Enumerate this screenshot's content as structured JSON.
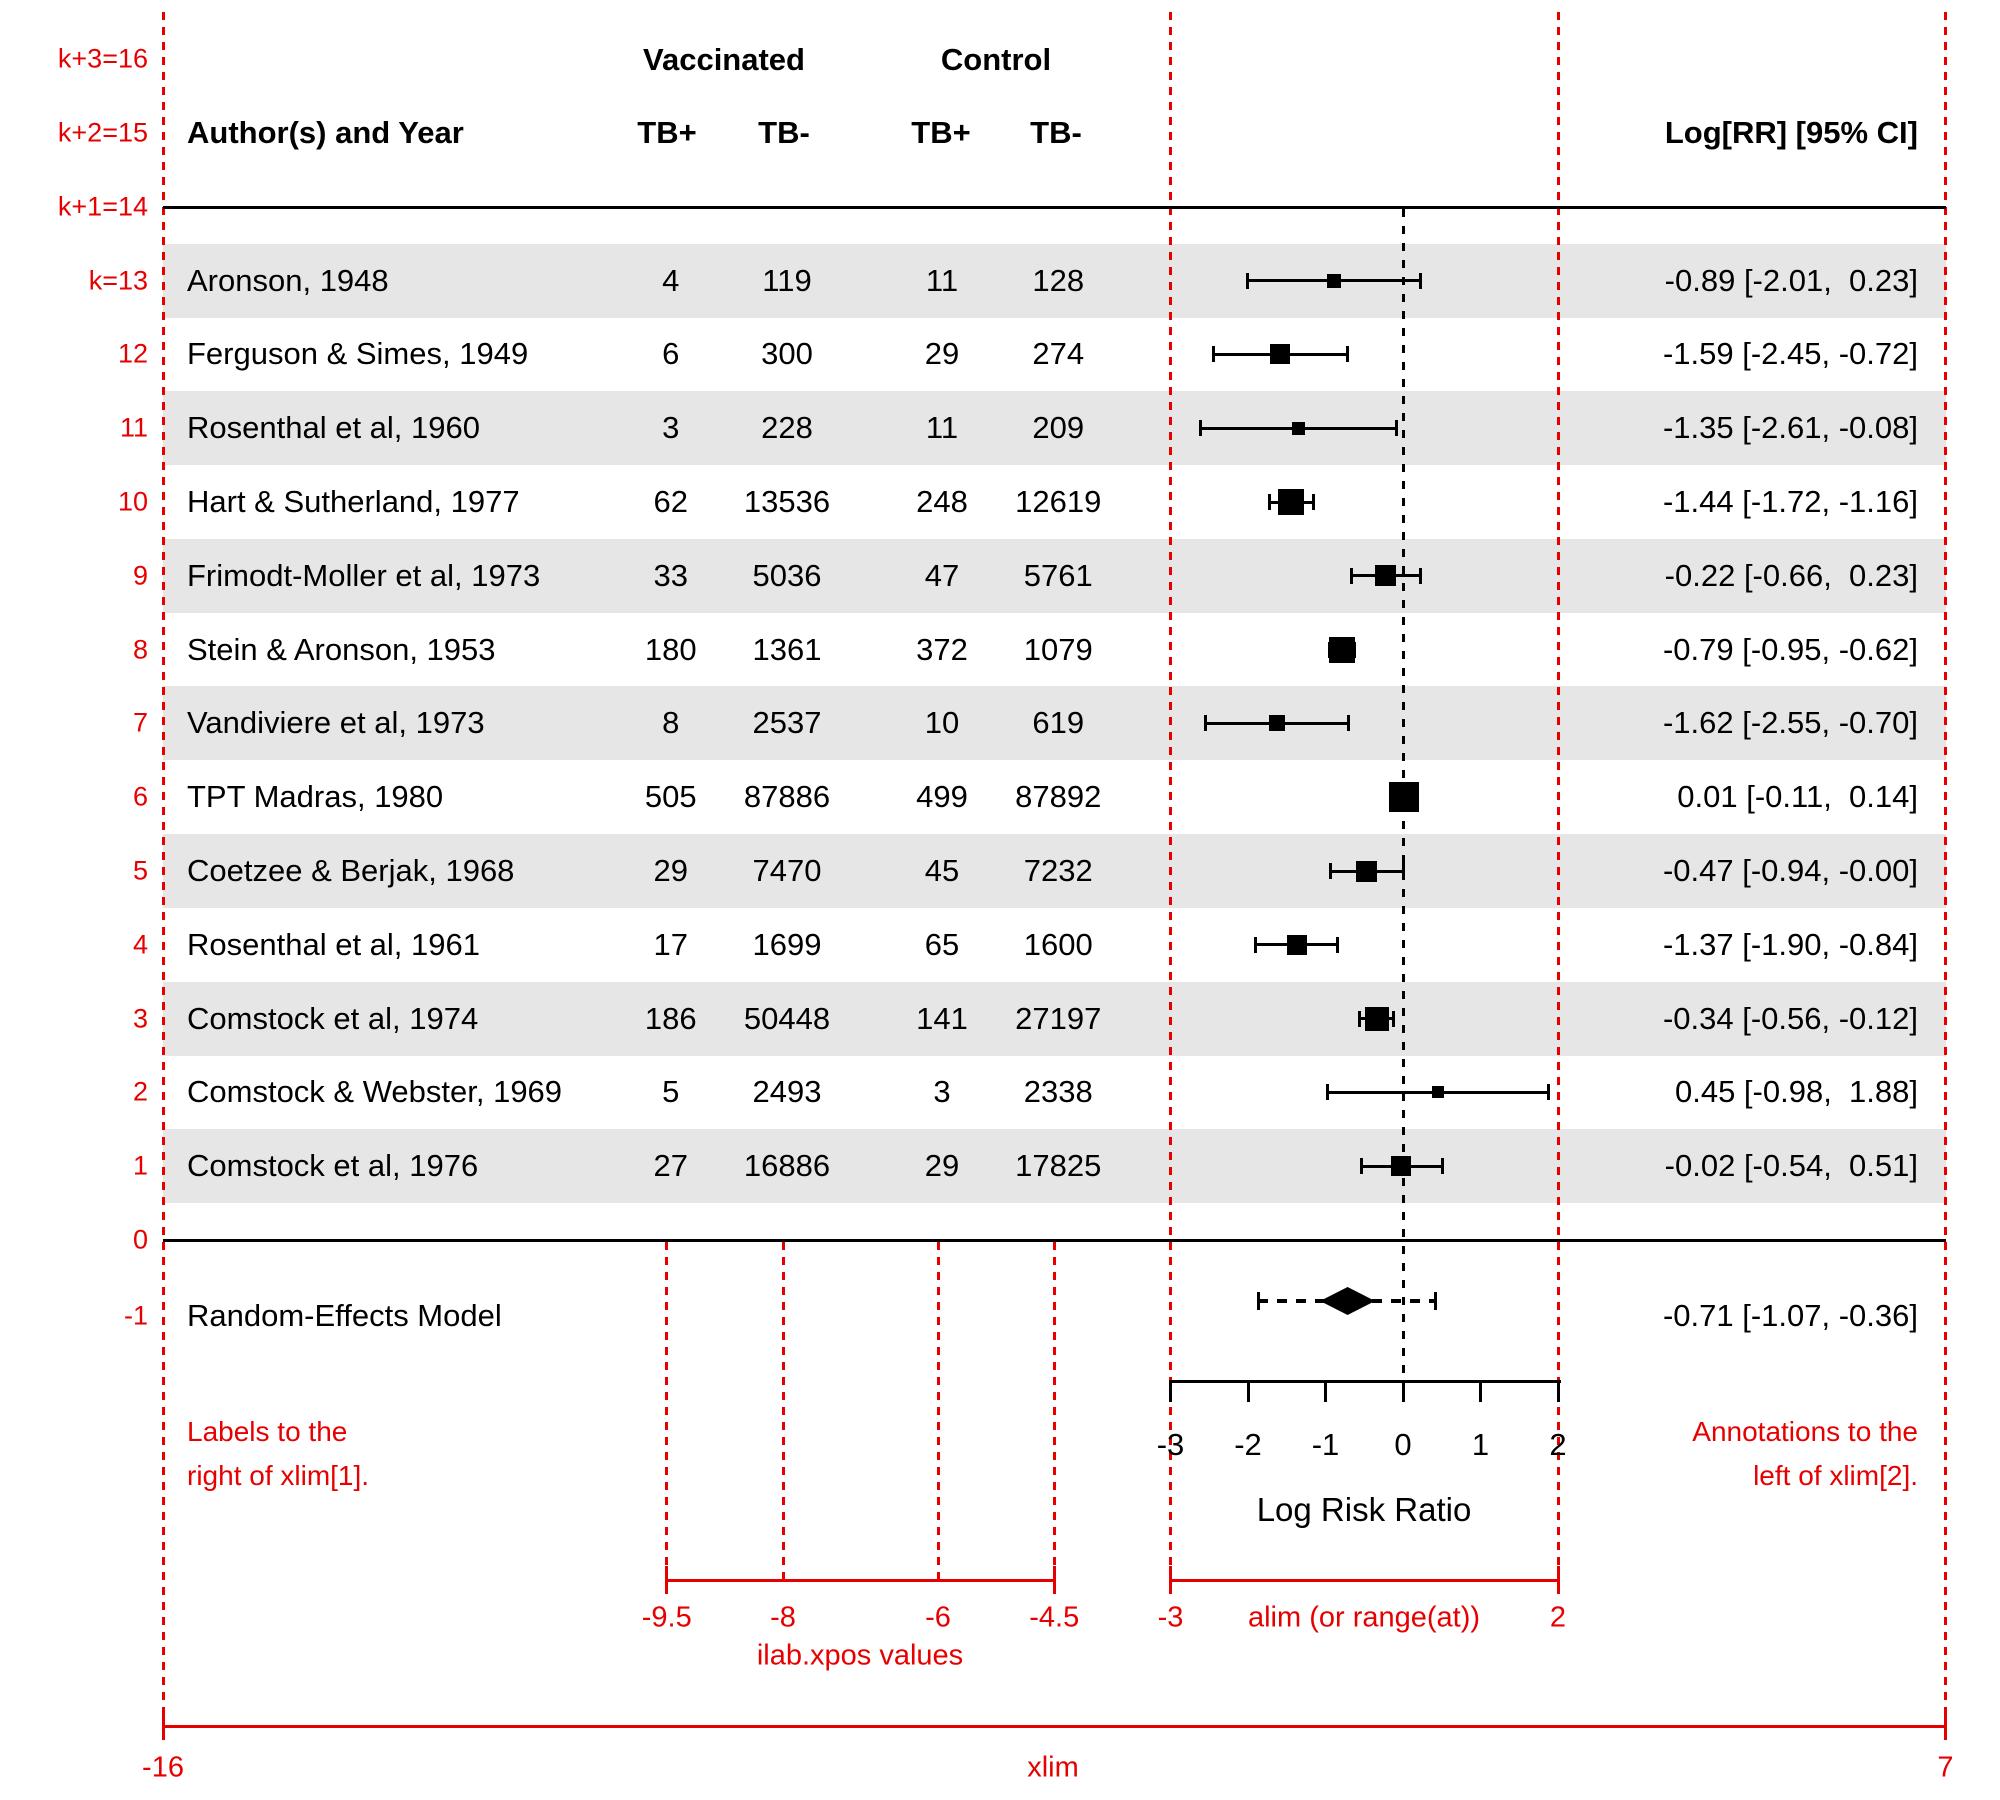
{
  "ui": {
    "group_headers": {
      "vaccinated": "Vaccinated",
      "control": "Control"
    },
    "columns": {
      "author": "Author(s) and Year",
      "v_tbp": "TB+",
      "v_tbn": "TB-",
      "c_tbp": "TB+",
      "c_tbn": "TB-",
      "annotation": "Log[RR] [95% CI]"
    },
    "summary_label": "Random-Effects Model",
    "summary_annotation": "-0.71 [-1.07, -0.36]",
    "axis_label": "Log Risk Ratio",
    "red_notes": {
      "left": [
        "Labels to the",
        "right of xlim[1]."
      ],
      "right": [
        "Annotations to the",
        "left of xlim[2]."
      ]
    },
    "red_captions": {
      "xlim": "xlim",
      "alim": "alim (or range(at))",
      "ilab": "ilab.xpos values"
    }
  },
  "k_labels": [
    {
      "k": 16,
      "label": "k+3=16"
    },
    {
      "k": 15,
      "label": "k+2=15"
    },
    {
      "k": 14,
      "label": "k+1=14"
    },
    {
      "k": 13,
      "label": "k=13"
    },
    {
      "k": 12,
      "label": "12"
    },
    {
      "k": 11,
      "label": "11"
    },
    {
      "k": 10,
      "label": "10"
    },
    {
      "k": 9,
      "label": "9"
    },
    {
      "k": 8,
      "label": "8"
    },
    {
      "k": 7,
      "label": "7"
    },
    {
      "k": 6,
      "label": "6"
    },
    {
      "k": 5,
      "label": "5"
    },
    {
      "k": 4,
      "label": "4"
    },
    {
      "k": 3,
      "label": "3"
    },
    {
      "k": 2,
      "label": "2"
    },
    {
      "k": 1,
      "label": "1"
    },
    {
      "k": 0,
      "label": "0"
    },
    {
      "k": -1,
      "label": "-1"
    }
  ],
  "colors": {
    "red": "#e60000",
    "stripe": "#e6e6e6",
    "ink": "#000000"
  },
  "chart_data": {
    "type": "scatter",
    "subtype": "forest-plot",
    "xlabel": "Log Risk Ratio",
    "xlim": [
      -16,
      7
    ],
    "alim": [
      -3,
      2
    ],
    "ilab_xpos": [
      -9.5,
      -8,
      -6,
      -4.5
    ],
    "x_ticks": [
      -3,
      -2,
      -1,
      0,
      1,
      2
    ],
    "grid": false,
    "studies": [
      {
        "k": 13,
        "author": "Aronson, 1948",
        "counts": [
          "4",
          "119",
          "11",
          "128"
        ],
        "estimate": -0.89,
        "ci": [
          -2.01,
          0.23
        ],
        "annotation": "-0.89 [-2.01,  0.23]",
        "size": 14
      },
      {
        "k": 12,
        "author": "Ferguson & Simes, 1949",
        "counts": [
          "6",
          "300",
          "29",
          "274"
        ],
        "estimate": -1.59,
        "ci": [
          -2.45,
          -0.72
        ],
        "annotation": "-1.59 [-2.45, -0.72]",
        "size": 20
      },
      {
        "k": 11,
        "author": "Rosenthal et al, 1960",
        "counts": [
          "3",
          "228",
          "11",
          "209"
        ],
        "estimate": -1.35,
        "ci": [
          -2.61,
          -0.08
        ],
        "annotation": "-1.35 [-2.61, -0.08]",
        "size": 13
      },
      {
        "k": 10,
        "author": "Hart & Sutherland, 1977",
        "counts": [
          "62",
          "13536",
          "248",
          "12619"
        ],
        "estimate": -1.44,
        "ci": [
          -1.72,
          -1.16
        ],
        "annotation": "-1.44 [-1.72, -1.16]",
        "size": 26
      },
      {
        "k": 9,
        "author": "Frimodt-Moller et al, 1973",
        "counts": [
          "33",
          "5036",
          "47",
          "5761"
        ],
        "estimate": -0.22,
        "ci": [
          -0.66,
          0.23
        ],
        "annotation": "-0.22 [-0.66,  0.23]",
        "size": 21
      },
      {
        "k": 8,
        "author": "Stein & Aronson, 1953",
        "counts": [
          "180",
          "1361",
          "372",
          "1079"
        ],
        "estimate": -0.79,
        "ci": [
          -0.95,
          -0.62
        ],
        "annotation": "-0.79 [-0.95, -0.62]",
        "size": 26
      },
      {
        "k": 7,
        "author": "Vandiviere et al, 1973",
        "counts": [
          "8",
          "2537",
          "10",
          "619"
        ],
        "estimate": -1.62,
        "ci": [
          -2.55,
          -0.7
        ],
        "annotation": "-1.62 [-2.55, -0.70]",
        "size": 16
      },
      {
        "k": 6,
        "author": "TPT Madras, 1980",
        "counts": [
          "505",
          "87886",
          "499",
          "87892"
        ],
        "estimate": 0.01,
        "ci": [
          -0.11,
          0.14
        ],
        "annotation": "0.01 [-0.11,  0.14]",
        "size": 30
      },
      {
        "k": 5,
        "author": "Coetzee & Berjak, 1968",
        "counts": [
          "29",
          "7470",
          "45",
          "7232"
        ],
        "estimate": -0.47,
        "ci": [
          -0.94,
          -0.0
        ],
        "annotation": "-0.47 [-0.94, -0.00]",
        "size": 21
      },
      {
        "k": 4,
        "author": "Rosenthal et al, 1961",
        "counts": [
          "17",
          "1699",
          "65",
          "1600"
        ],
        "estimate": -1.37,
        "ci": [
          -1.9,
          -0.84
        ],
        "annotation": "-1.37 [-1.90, -0.84]",
        "size": 20
      },
      {
        "k": 3,
        "author": "Comstock et al, 1974",
        "counts": [
          "186",
          "50448",
          "141",
          "27197"
        ],
        "estimate": -0.34,
        "ci": [
          -0.56,
          -0.12
        ],
        "annotation": "-0.34 [-0.56, -0.12]",
        "size": 24
      },
      {
        "k": 2,
        "author": "Comstock & Webster, 1969",
        "counts": [
          "5",
          "2493",
          "3",
          "2338"
        ],
        "estimate": 0.45,
        "ci": [
          -0.98,
          1.88
        ],
        "annotation": "0.45 [-0.98,  1.88]",
        "size": 12
      },
      {
        "k": 1,
        "author": "Comstock et al, 1976",
        "counts": [
          "27",
          "16886",
          "29",
          "17825"
        ],
        "estimate": -0.02,
        "ci": [
          -0.54,
          0.51
        ],
        "annotation": "-0.02 [-0.54,  0.51]",
        "size": 20
      }
    ],
    "summary": {
      "k": -1,
      "label": "Random-Effects Model",
      "estimate": -0.71,
      "ci": [
        -1.07,
        -0.36
      ],
      "prediction_interval": [
        -1.87,
        0.42
      ],
      "annotation": "-0.71 [-1.07, -0.36]"
    },
    "ilab_tick_labels": [
      "-9.5",
      "-8",
      "-6",
      "-4.5"
    ],
    "alim_tick_labels": [
      "-3",
      "2"
    ],
    "xlim_tick_labels": [
      "-16",
      "7"
    ]
  }
}
